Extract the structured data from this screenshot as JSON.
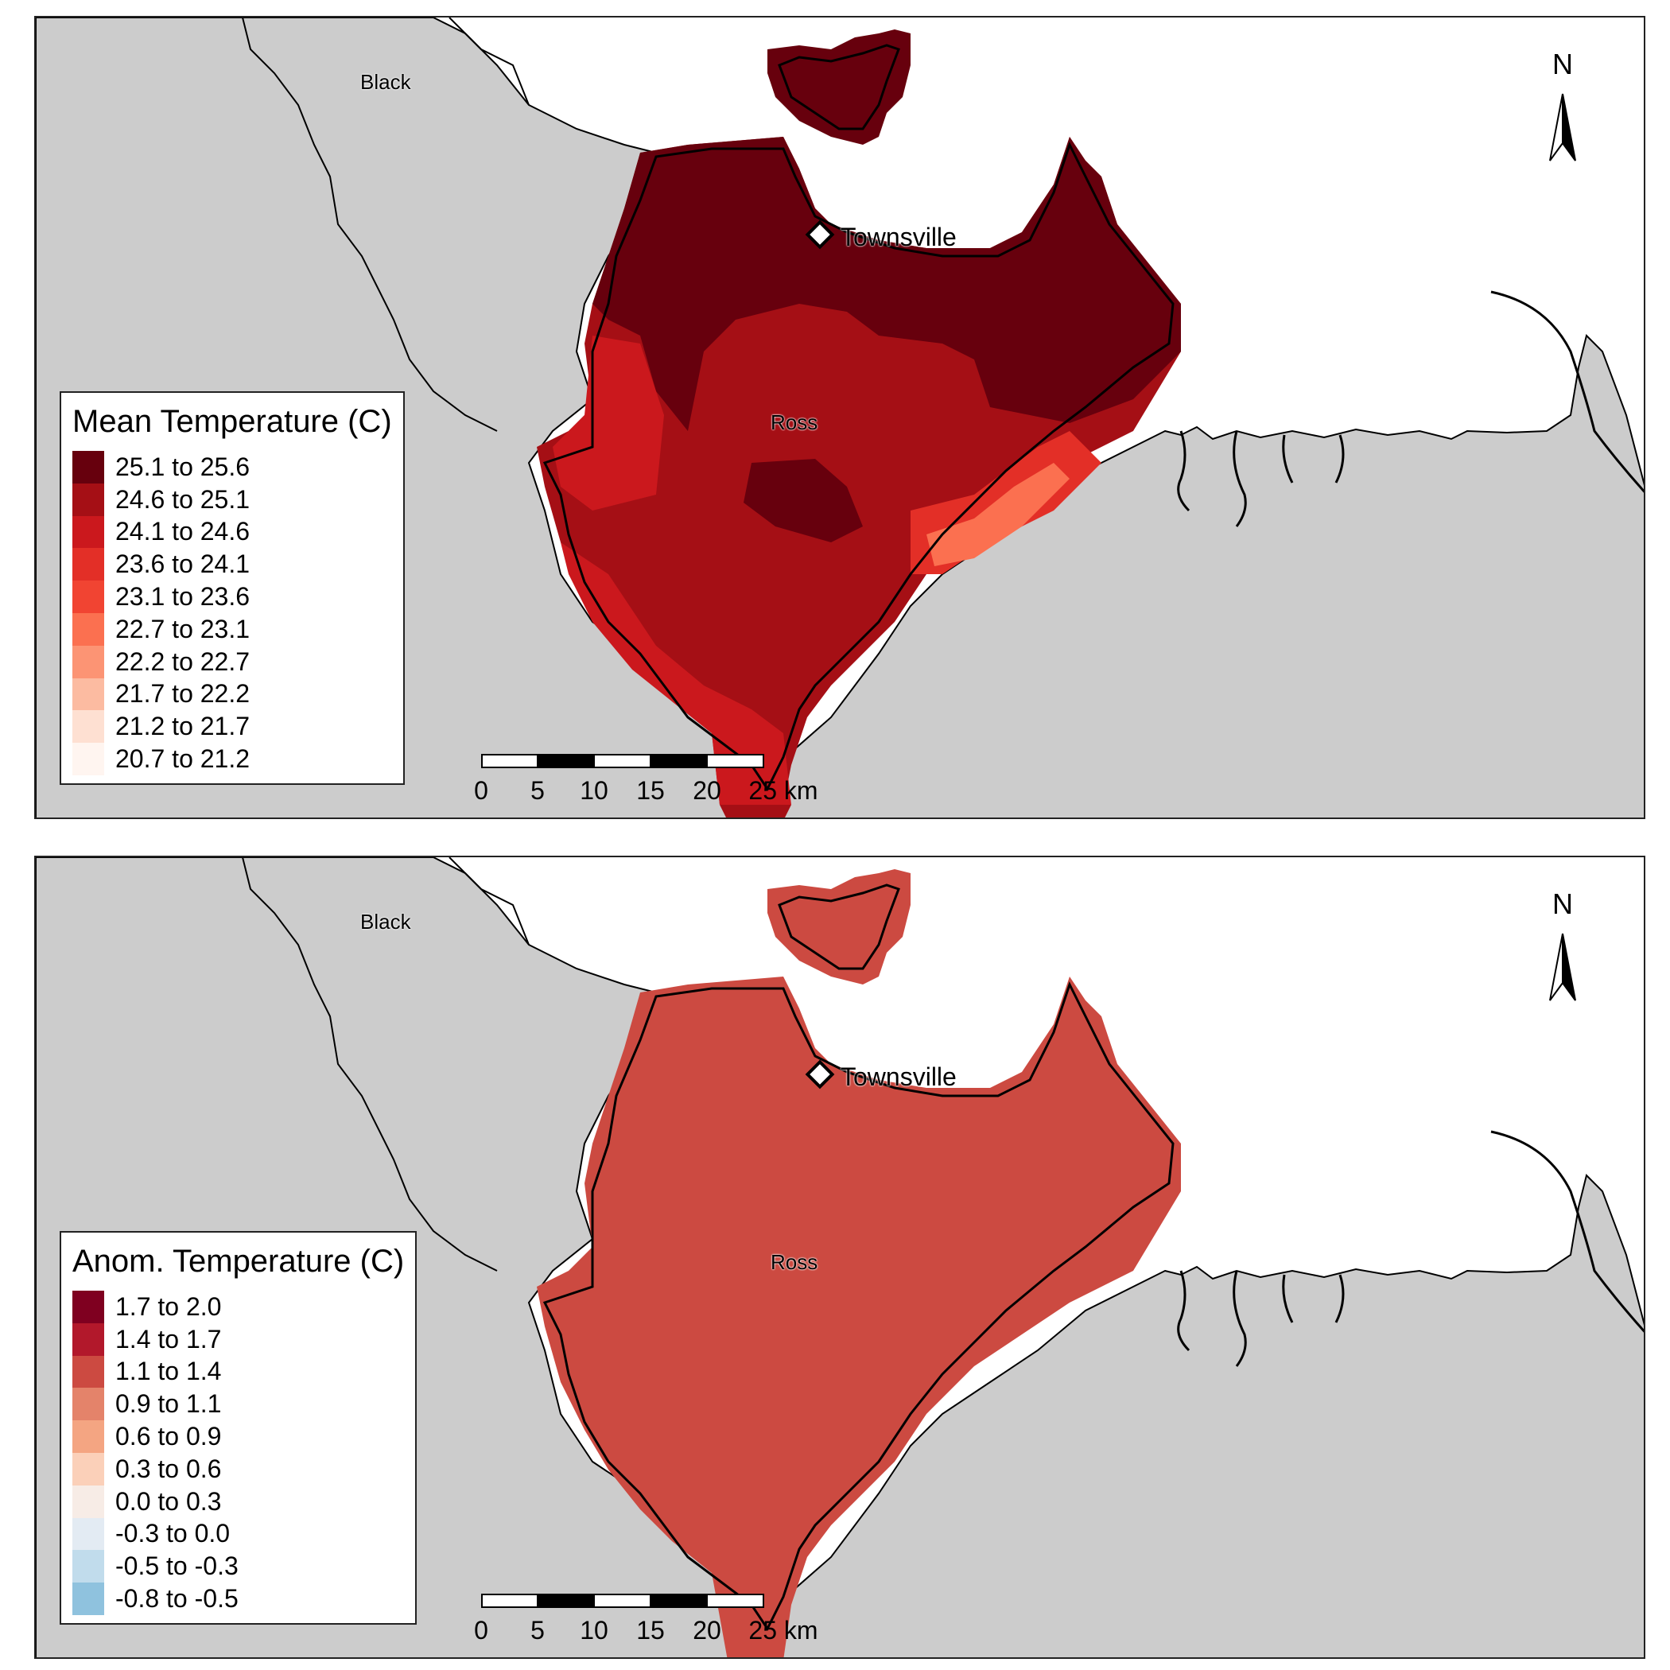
{
  "panels": [
    {
      "id": "mean",
      "legend": {
        "title": "Mean Temperature (C)",
        "items": [
          {
            "label": "25.1 to 25.6",
            "color": "#67000d"
          },
          {
            "label": "24.6 to 25.1",
            "color": "#a50f15"
          },
          {
            "label": "24.1 to 24.6",
            "color": "#cb181d"
          },
          {
            "label": "23.6 to 24.1",
            "color": "#e32f27"
          },
          {
            "label": "23.1 to 23.6",
            "color": "#f14432"
          },
          {
            "label": "22.7 to 23.1",
            "color": "#fb7050"
          },
          {
            "label": "22.2 to 22.7",
            "color": "#fc9474"
          },
          {
            "label": "21.7 to 22.2",
            "color": "#fcbba1"
          },
          {
            "label": "21.2 to 21.7",
            "color": "#fee0d2"
          },
          {
            "label": "20.7 to 21.2",
            "color": "#fff5f0"
          }
        ]
      },
      "labels": {
        "black": "Black",
        "townsville": "Townsville",
        "ross": "Ross"
      },
      "scalebar": {
        "ticks": [
          "0",
          "5",
          "10",
          "15",
          "20",
          "25 km"
        ]
      },
      "north": "N"
    },
    {
      "id": "anomaly",
      "legend": {
        "title": "Anom. Temperature (C)",
        "items": [
          {
            "label": "1.7 to 2.0",
            "color": "#7f0020"
          },
          {
            "label": "1.4 to 1.7",
            "color": "#b2182b"
          },
          {
            "label": "1.1 to 1.4",
            "color": "#cc4a41"
          },
          {
            "label": "0.9 to 1.1",
            "color": "#e4836a"
          },
          {
            "label": "0.6 to 0.9",
            "color": "#f4a582"
          },
          {
            "label": "0.3 to 0.6",
            "color": "#fbd0b9"
          },
          {
            "label": "0.0 to 0.3",
            "color": "#f7ece6"
          },
          {
            "label": "-0.3 to 0.0",
            "color": "#e3ebf3"
          },
          {
            "label": "-0.5 to -0.3",
            "color": "#c1dcec"
          },
          {
            "label": "-0.8 to -0.5",
            "color": "#8fc2de"
          }
        ]
      },
      "labels": {
        "black": "Black",
        "townsville": "Townsville",
        "ross": "Ross"
      },
      "scalebar": {
        "ticks": [
          "0",
          "5",
          "10",
          "15",
          "20",
          "25 km"
        ]
      },
      "north": "N"
    }
  ],
  "colors": {
    "land": "#cccccc",
    "sea": "#ffffff",
    "anomaly_fill": "#cc4a41",
    "mean_hot": "#67000d",
    "mean_mid": "#a50f15",
    "mean_warm": "#cb181d",
    "mean_cool": "#e32f27",
    "mean_coolest": "#fb7050"
  }
}
